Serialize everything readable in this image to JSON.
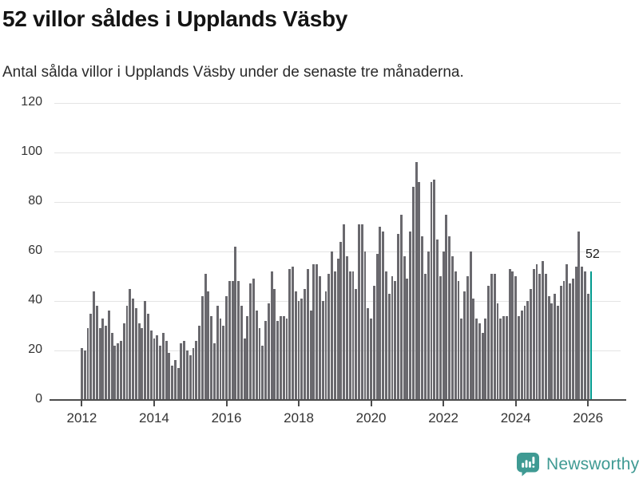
{
  "title": "52 villor såldes i Upplands Väsby",
  "subtitle": "Antal sålda villor i Upplands Väsby under de senaste tre månaderna.",
  "annotation": {
    "last_value_label": "52"
  },
  "branding": {
    "name": "Newsworthy",
    "icon": "newsworthy-speech-bubble-chart-icon"
  },
  "colors": {
    "bar": "#6a696e",
    "highlight": "#019a8e",
    "grid": "#e4e4e4",
    "axis": "#4c4c4c",
    "title_text": "#141414",
    "axis_text": "#333333",
    "brand_teal": "#3f9a93"
  },
  "chart_data": {
    "type": "bar",
    "title": "52 villor såldes i Upplands Väsby",
    "subtitle": "Antal sålda villor i Upplands Väsby under de senaste tre månaderna.",
    "frequency": "monthly",
    "first_period": "2012-01",
    "last_period": "2026-02",
    "x_tick_labels": [
      "2012",
      "2014",
      "2016",
      "2018",
      "2020",
      "2022",
      "2024",
      "2026"
    ],
    "y_ticks": [
      0,
      20,
      40,
      60,
      80,
      100,
      120
    ],
    "ylim": [
      0,
      120
    ],
    "grid": true,
    "legend": false,
    "highlight_last_bar": true,
    "last_value": 52,
    "values": [
      21,
      20,
      29,
      35,
      44,
      38,
      29,
      33,
      30,
      36,
      27,
      22,
      23,
      24,
      31,
      38,
      45,
      41,
      37,
      31,
      29,
      40,
      35,
      28,
      25,
      26,
      22,
      27,
      24,
      19,
      14,
      16,
      13,
      23,
      24,
      20,
      18,
      21,
      24,
      30,
      42,
      51,
      44,
      34,
      23,
      38,
      33,
      30,
      42,
      48,
      48,
      62,
      48,
      38,
      25,
      34,
      47,
      49,
      36,
      29,
      22,
      32,
      39,
      52,
      45,
      32,
      34,
      34,
      33,
      53,
      54,
      44,
      40,
      41,
      45,
      53,
      36,
      55,
      55,
      50,
      40,
      44,
      51,
      60,
      52,
      57,
      64,
      71,
      58,
      52,
      52,
      45,
      71,
      71,
      60,
      37,
      33,
      46,
      59,
      70,
      68,
      52,
      43,
      50,
      48,
      67,
      75,
      58,
      49,
      68,
      86,
      96,
      88,
      66,
      51,
      60,
      88,
      89,
      65,
      50,
      60,
      75,
      66,
      58,
      52,
      48,
      33,
      44,
      50,
      60,
      41,
      33,
      31,
      27,
      33,
      46,
      51,
      51,
      39,
      33,
      34,
      34,
      53,
      52,
      50,
      34,
      36,
      38,
      40,
      45,
      53,
      55,
      51,
      56,
      51,
      42,
      39,
      43,
      38,
      46,
      48,
      55,
      47,
      49,
      54,
      68,
      54,
      52,
      43,
      52
    ]
  }
}
